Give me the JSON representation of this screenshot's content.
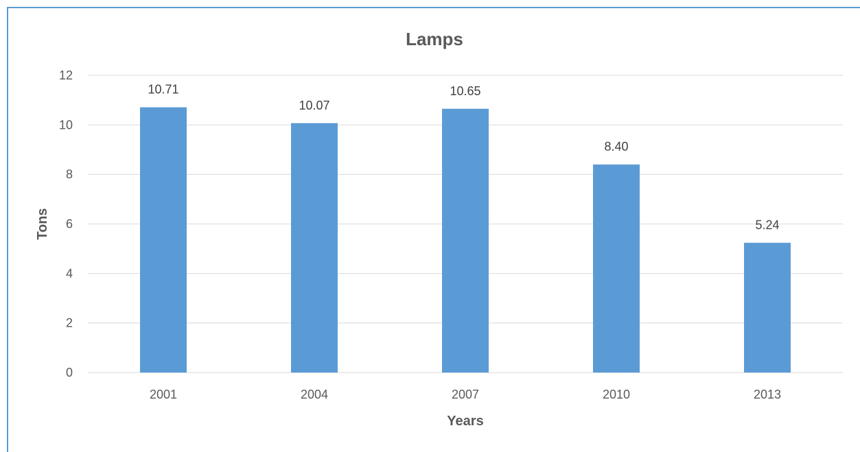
{
  "chart_data": {
    "type": "bar",
    "title": "Lamps",
    "xlabel": "Years",
    "ylabel": "Tons",
    "categories": [
      "2001",
      "2004",
      "2007",
      "2010",
      "2013"
    ],
    "values": [
      10.71,
      10.07,
      10.65,
      8.4,
      5.24
    ],
    "value_labels": [
      "10.71",
      "10.07",
      "10.65",
      "8.40",
      "5.24"
    ],
    "ylim": [
      0,
      12
    ],
    "yticks": [
      "0",
      "2",
      "4",
      "6",
      "8",
      "10",
      "12"
    ],
    "grid": true,
    "legend": "none",
    "colors": {
      "bar": "#5b9bd5",
      "grid": "#d9d9d9",
      "frame": "#5b9bd5"
    }
  }
}
